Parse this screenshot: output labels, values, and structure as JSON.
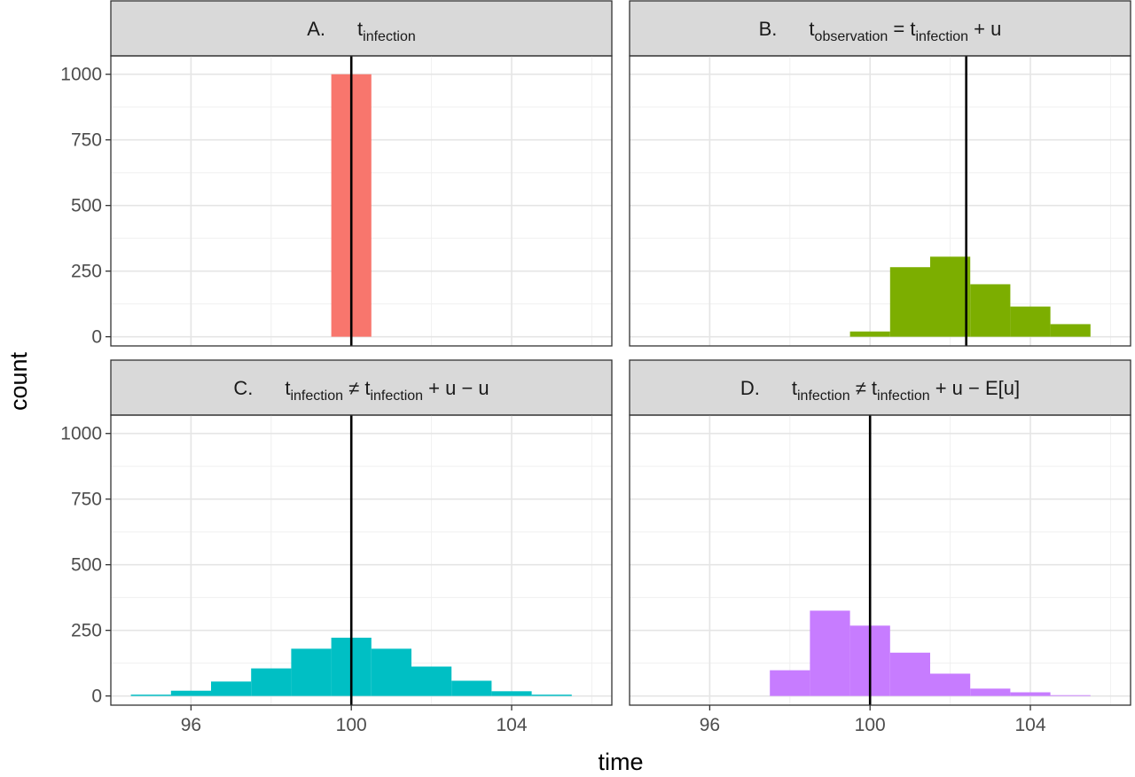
{
  "chart_data": {
    "type": "bar",
    "xlabel": "time",
    "ylabel": "count",
    "xlim": [
      94,
      106.5
    ],
    "ylim": [
      -35,
      1070
    ],
    "x_ticks": [
      96,
      100,
      104
    ],
    "y_ticks": [
      0,
      250,
      500,
      750,
      1000
    ],
    "x_tick_labels": [
      "96",
      "100",
      "104"
    ],
    "y_tick_labels": [
      "0",
      "250",
      "500",
      "750",
      "1000"
    ],
    "grid": true,
    "bin_width": 1,
    "panels": [
      {
        "letter": "A.",
        "title_parts": [
          {
            "text": "t",
            "sub": "infection"
          }
        ],
        "color": "#f8766d",
        "vline": 100,
        "bars": [
          {
            "x": 100,
            "count": 1000
          }
        ]
      },
      {
        "letter": "B.",
        "title_parts": [
          {
            "text": "t",
            "sub": "observation"
          },
          {
            "text": " = t",
            "sub": "infection"
          },
          {
            "text": " + u"
          }
        ],
        "color": "#7cae00",
        "vline": 102.4,
        "bars": [
          {
            "x": 100,
            "count": 20
          },
          {
            "x": 101,
            "count": 265
          },
          {
            "x": 102,
            "count": 305
          },
          {
            "x": 103,
            "count": 200
          },
          {
            "x": 104,
            "count": 115
          },
          {
            "x": 105,
            "count": 48
          }
        ]
      },
      {
        "letter": "C.",
        "title_parts": [
          {
            "text": "t",
            "sub": "infection"
          },
          {
            "text": " ≠ t",
            "sub": "infection"
          },
          {
            "text": " + u − u"
          }
        ],
        "color": "#00bfc4",
        "vline": 100,
        "bars": [
          {
            "x": 95,
            "count": 5
          },
          {
            "x": 96,
            "count": 20
          },
          {
            "x": 97,
            "count": 55
          },
          {
            "x": 98,
            "count": 105
          },
          {
            "x": 99,
            "count": 180
          },
          {
            "x": 100,
            "count": 222
          },
          {
            "x": 101,
            "count": 180
          },
          {
            "x": 102,
            "count": 112
          },
          {
            "x": 103,
            "count": 58
          },
          {
            "x": 104,
            "count": 18
          },
          {
            "x": 105,
            "count": 5
          }
        ]
      },
      {
        "letter": "D.",
        "title_parts": [
          {
            "text": "t",
            "sub": "infection"
          },
          {
            "text": " ≠ t",
            "sub": "infection"
          },
          {
            "text": " + u − E[u]"
          }
        ],
        "color": "#c77cff",
        "vline": 100,
        "bars": [
          {
            "x": 98,
            "count": 98
          },
          {
            "x": 99,
            "count": 325
          },
          {
            "x": 100,
            "count": 268
          },
          {
            "x": 101,
            "count": 165
          },
          {
            "x": 102,
            "count": 85
          },
          {
            "x": 103,
            "count": 28
          },
          {
            "x": 104,
            "count": 14
          },
          {
            "x": 105,
            "count": 3
          }
        ]
      }
    ]
  }
}
